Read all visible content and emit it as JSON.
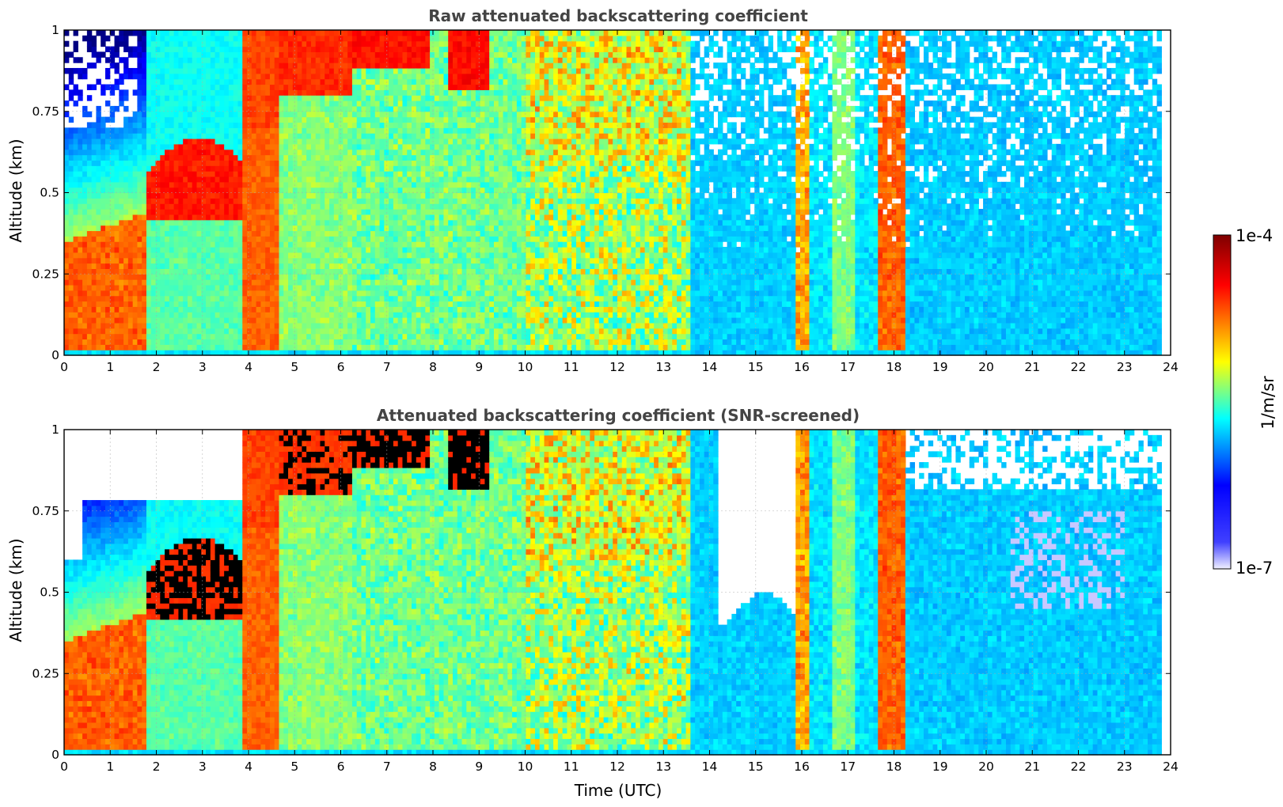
{
  "chart_data": [
    {
      "type": "heatmap",
      "title": "Raw attenuated backscattering coefficient",
      "xlabel": "",
      "ylabel": "Altitude (km)",
      "xlim": [
        0,
        24
      ],
      "ylim": [
        0,
        1
      ],
      "xticks": [
        "0",
        "1",
        "2",
        "3",
        "4",
        "5",
        "6",
        "7",
        "8",
        "9",
        "10",
        "11",
        "12",
        "13",
        "14",
        "15",
        "16",
        "17",
        "18",
        "19",
        "20",
        "21",
        "22",
        "23",
        "24"
      ],
      "yticks": [
        "0",
        "0.25",
        "0.5",
        "0.75",
        "1"
      ],
      "grid": true,
      "colormap": "jet",
      "data_end_time": 23.8,
      "screened": false
    },
    {
      "type": "heatmap",
      "title": "Attenuated backscattering coefficient (SNR-screened)",
      "xlabel": "Time (UTC)",
      "ylabel": "Altitude (km)",
      "xlim": [
        0,
        24
      ],
      "ylim": [
        0,
        1
      ],
      "xticks": [
        "0",
        "1",
        "2",
        "3",
        "4",
        "5",
        "6",
        "7",
        "8",
        "9",
        "10",
        "11",
        "12",
        "13",
        "14",
        "15",
        "16",
        "17",
        "18",
        "19",
        "20",
        "21",
        "22",
        "23",
        "24"
      ],
      "yticks": [
        "0",
        "0.25",
        "0.5",
        "0.75",
        "1"
      ],
      "grid": true,
      "colormap": "jet",
      "data_end_time": 23.8,
      "screened": true
    }
  ],
  "colorbar": {
    "label": "1/m/sr",
    "max_label": "1e-4",
    "min_label": "1e-7",
    "scale": "log",
    "range": [
      1e-07,
      0.0001
    ],
    "colors": [
      "#f0f0ff",
      "#0000ff",
      "#00ffff",
      "#ffff00",
      "#ff0000",
      "#7f0000"
    ]
  },
  "colors": {
    "title": "#444444",
    "saturated": "#000000"
  }
}
